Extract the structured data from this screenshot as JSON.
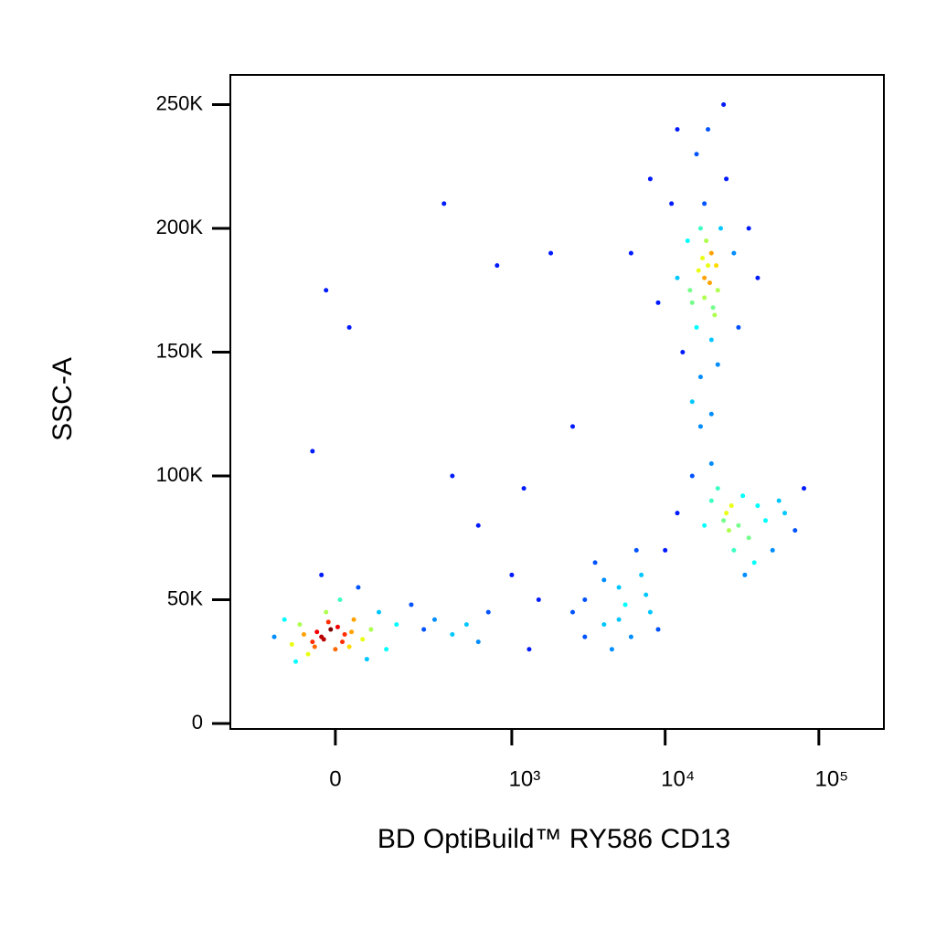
{
  "chart_data": {
    "type": "scatter",
    "x_label": "BD OptiBuild™ RY586 CD13",
    "y_label": "SSC-A",
    "xscale": "biexponential",
    "xlim": [
      -330,
      265000
    ],
    "xticks": [
      0,
      {
        "value": 1000,
        "label": "10³"
      },
      {
        "value": 10000,
        "label": "10⁴"
      },
      {
        "value": 100000,
        "label": "10⁵"
      }
    ],
    "ylim": [
      -2200,
      262000
    ],
    "yticks": [
      0,
      {
        "value": 50000,
        "label": "50K"
      },
      {
        "value": 100000,
        "label": "100K"
      },
      {
        "value": 150000,
        "label": "150K"
      },
      {
        "value": 200000,
        "label": "200K"
      },
      {
        "value": 250000,
        "label": "250K"
      }
    ],
    "color_by": "density",
    "x": [
      -30,
      -10,
      -50,
      20,
      -80,
      0,
      40,
      -20,
      60,
      -100,
      80,
      -60,
      10,
      100,
      -40,
      -25,
      5,
      -70,
      30,
      150,
      200,
      120,
      -120,
      -150,
      50,
      -30,
      250,
      300,
      400,
      500,
      600,
      -90,
      70,
      -15,
      15,
      -45,
      35,
      700,
      1500,
      1200,
      2500,
      1800,
      800,
      350,
      -20,
      30,
      -50,
      400,
      600,
      1000,
      1300,
      3000,
      4000,
      5000,
      6000,
      7000,
      3500,
      4500,
      8000,
      2500,
      5500,
      6500,
      9000,
      3000,
      7500,
      4000,
      5000,
      18000,
      15000,
      20000,
      17000,
      22000,
      16000,
      19000,
      14000,
      21000,
      18000,
      13000,
      25000,
      12000,
      17000,
      20000,
      23000,
      16000,
      19000,
      11000,
      28000,
      15000,
      22000,
      9000,
      30000,
      18000,
      17500,
      19500,
      16500,
      20500,
      18500,
      14500,
      21500,
      8000,
      35000,
      12000,
      24000,
      6000,
      40000,
      17000,
      20000,
      25000,
      20000,
      30000,
      35000,
      22000,
      28000,
      40000,
      18000,
      45000,
      15000,
      32000,
      26000,
      50000,
      60000,
      12000,
      27000,
      24000,
      38000,
      70000,
      10000,
      80000,
      20000,
      33000,
      55000
    ],
    "values": [
      35000,
      38000,
      33000,
      36000,
      40000,
      30000,
      42000,
      45000,
      34000,
      32000,
      38000,
      28000,
      50000,
      45000,
      37000,
      34000,
      39000,
      36000,
      31000,
      40000,
      48000,
      30000,
      42000,
      35000,
      55000,
      60000,
      38000,
      42000,
      36000,
      40000,
      33000,
      25000,
      26000,
      41000,
      33000,
      31000,
      37000,
      45000,
      50000,
      95000,
      120000,
      190000,
      185000,
      210000,
      175000,
      160000,
      110000,
      100000,
      80000,
      60000,
      30000,
      50000,
      40000,
      55000,
      35000,
      60000,
      65000,
      30000,
      45000,
      45000,
      48000,
      70000,
      38000,
      35000,
      52000,
      58000,
      42000,
      180000,
      170000,
      190000,
      200000,
      175000,
      160000,
      185000,
      195000,
      165000,
      210000,
      150000,
      220000,
      180000,
      140000,
      155000,
      200000,
      230000,
      240000,
      210000,
      190000,
      130000,
      145000,
      170000,
      160000,
      172000,
      188000,
      178000,
      183000,
      168000,
      195000,
      175000,
      185000,
      220000,
      200000,
      240000,
      250000,
      190000,
      180000,
      120000,
      125000,
      85000,
      90000,
      80000,
      75000,
      95000,
      70000,
      88000,
      80000,
      82000,
      100000,
      92000,
      78000,
      70000,
      85000,
      85000,
      88000,
      82000,
      65000,
      78000,
      70000,
      95000,
      105000,
      60000,
      90000
    ]
  }
}
